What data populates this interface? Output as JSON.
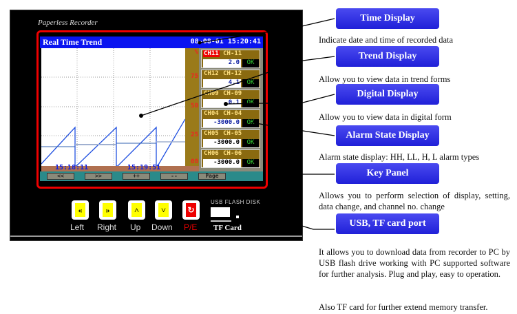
{
  "device": {
    "brand": "Paperless Recorder",
    "screen": {
      "title": "Real Time Trend",
      "datetime": "08-08-01 15:20:41",
      "scale_labels": [
        "%",
        "75",
        "50",
        "25",
        "00"
      ],
      "time_labels": [
        "15:18:11",
        "15:19:51"
      ],
      "nav_buttons": [
        "<<",
        ">>",
        "++",
        "--",
        "Page"
      ],
      "channels": [
        {
          "id": "CH11",
          "name": "CH-11",
          "value": "2.0",
          "status": "OK"
        },
        {
          "id": "CH12",
          "name": "CH-12",
          "value": "4.1",
          "status": "OK"
        },
        {
          "id": "CH09",
          "name": "CH-09",
          "value": "0.1",
          "status": "OK"
        },
        {
          "id": "CH04",
          "name": "CH-04",
          "value": "-3000.0",
          "status": "OK"
        },
        {
          "id": "CH05",
          "name": "CH-05",
          "value": "-3000.0",
          "status": "OK"
        },
        {
          "id": "CH06",
          "name": "CH-06",
          "value": "-3000.0",
          "status": "OK"
        }
      ]
    },
    "keys": [
      {
        "label": "Left",
        "glyph": "«"
      },
      {
        "label": "Right",
        "glyph": "»"
      },
      {
        "label": "Up",
        "glyph": "˄"
      },
      {
        "label": "Down",
        "glyph": "˅"
      },
      {
        "label": "P/E",
        "glyph": "↻"
      }
    ],
    "usb_label": "USB FLASH DISK",
    "tf_label": "TF Card"
  },
  "callouts": [
    {
      "title": "Time Display",
      "desc": "Indicate date and time of recorded data"
    },
    {
      "title": "Trend Display",
      "desc": "Allow you to view data in trend forms"
    },
    {
      "title": "Digital Display",
      "desc": "Allow you to view data in digital form"
    },
    {
      "title": "Alarm State Display",
      "desc": "Alarm state display: HH, LL, H, L alarm types"
    },
    {
      "title": "Key Panel",
      "desc": "Allows you to perform selection of display, setting, data change, and channel no. change"
    },
    {
      "title": "USB, TF card port",
      "desc": "It allows you to download data from recorder to PC by USB flash drive working with PC supported software for further analysis. Plug and play, easy to operation.",
      "desc2": "Also TF card for further extend memory transfer."
    }
  ],
  "colors": {
    "callout": "#2a2ae0",
    "frame": "#e00000",
    "header": "#0a14f0",
    "trend": "#2050e0"
  }
}
